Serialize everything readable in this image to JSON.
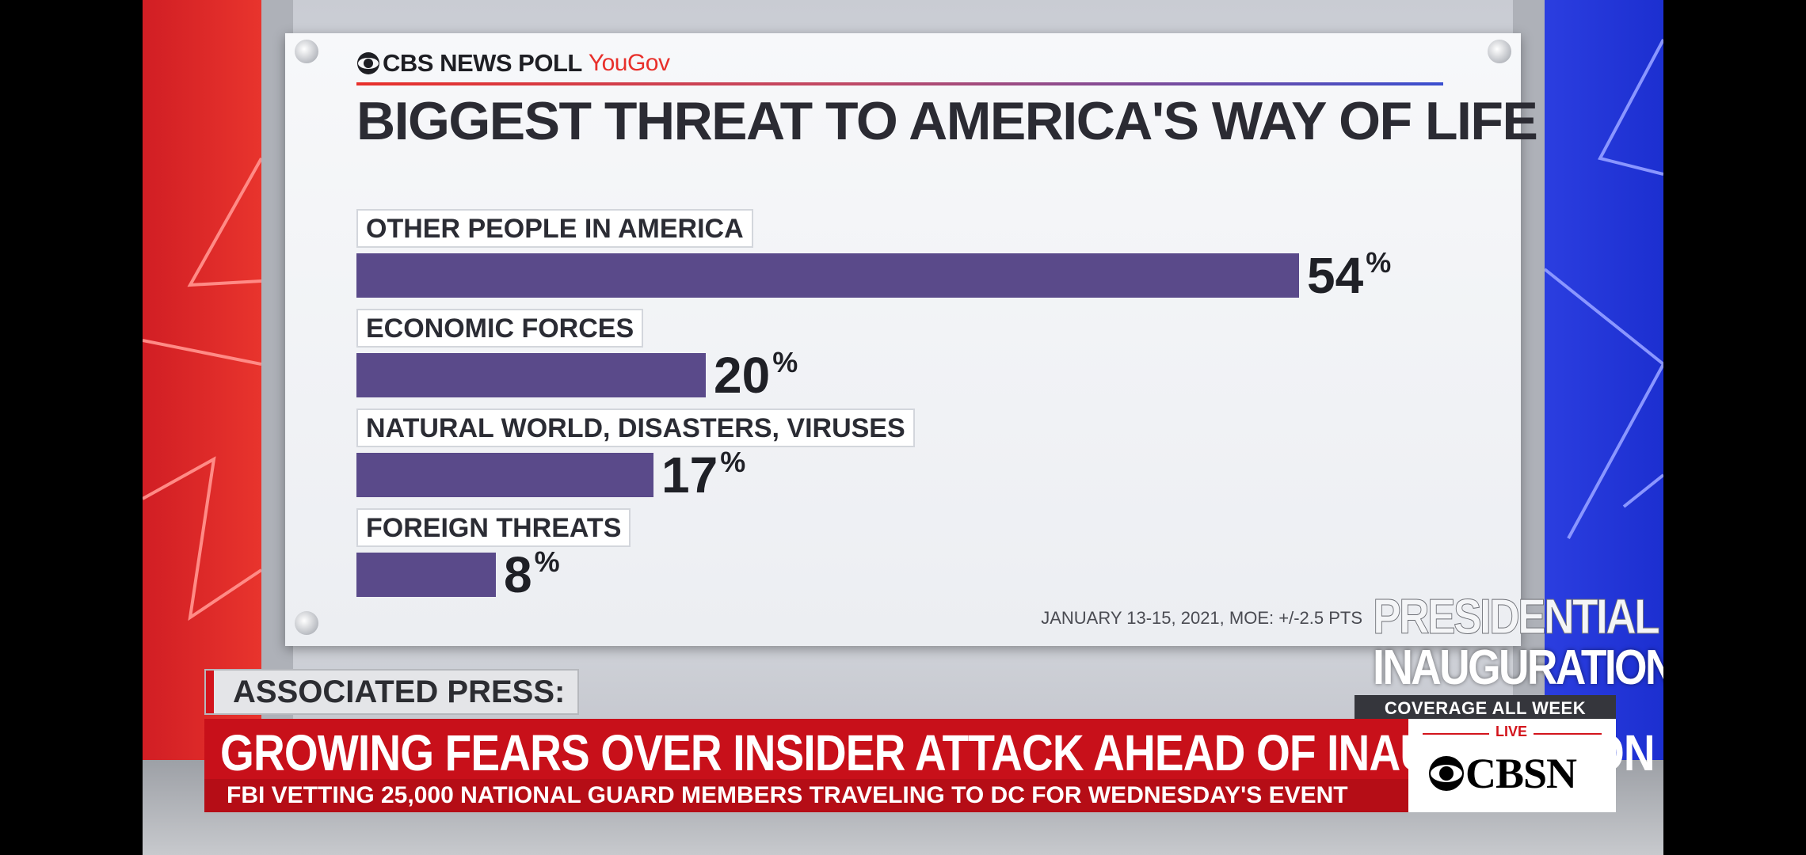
{
  "poll": {
    "brand": "CBS NEWS POLL",
    "partner": "YouGov",
    "source_note": "JANUARY 13-15, 2021, MOE: +/-2.5 PTS"
  },
  "chart_data": {
    "type": "bar",
    "orientation": "horizontal",
    "title": "BIGGEST THREAT TO AMERICA'S WAY OF LIFE",
    "categories": [
      "OTHER PEOPLE IN AMERICA",
      "ECONOMIC FORCES",
      "NATURAL WORLD, DISASTERS, VIRUSES",
      "FOREIGN THREATS"
    ],
    "values": [
      54,
      20,
      17,
      8
    ],
    "value_labels": [
      "54",
      "20",
      "17",
      "8"
    ],
    "unit": "%",
    "xlim": [
      0,
      54
    ],
    "bar_color": "#5a4a8a",
    "grid": false,
    "legend": "none"
  },
  "inauguration": {
    "line1": "PRESIDENTIAL",
    "line2": "INAUGURATION",
    "coverage": "COVERAGE ALL WEEK"
  },
  "lower_third": {
    "tag": "ASSOCIATED PRESS:",
    "headline": "GROWING FEARS OVER INSIDER ATTACK AHEAD OF INAUGURATION",
    "subline": "FBI VETTING 25,000 NATIONAL GUARD MEMBERS TRAVELING TO DC FOR WEDNESDAY'S EVENT"
  },
  "network": {
    "live_label": "LIVE",
    "logo_text": "CBSN"
  },
  "colors": {
    "accent_red": "#c8101a",
    "wall_blue": "#1c2fd0",
    "bar": "#5a4a8a"
  }
}
